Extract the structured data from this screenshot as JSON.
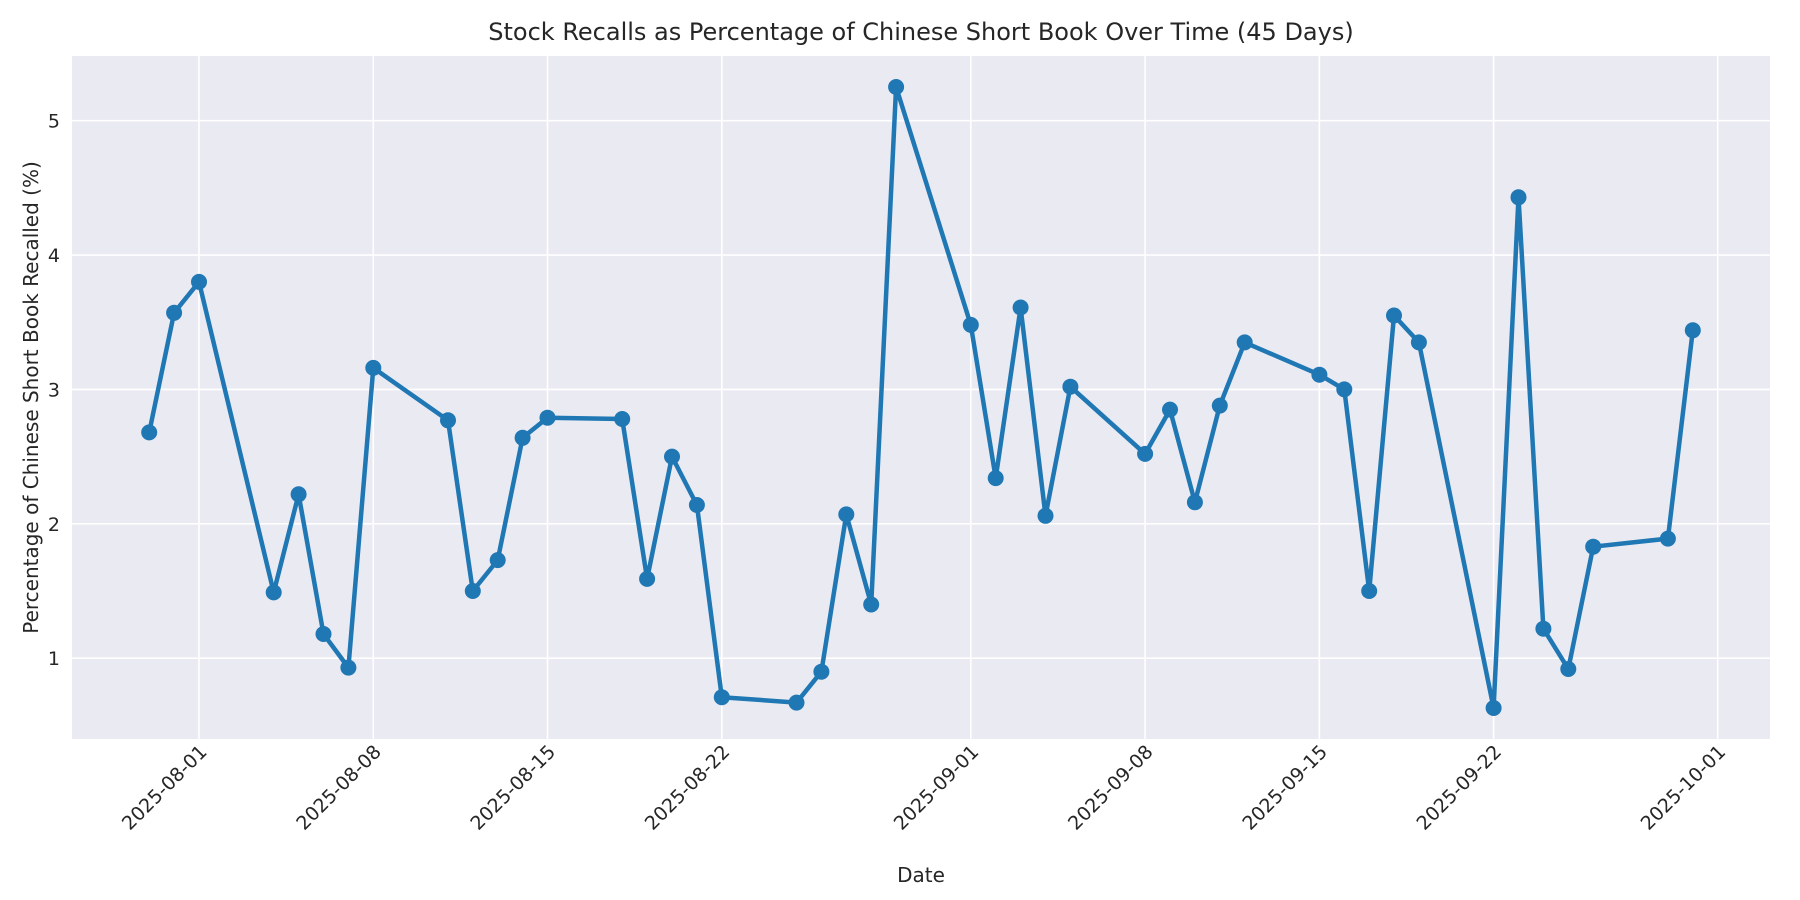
{
  "figure": {
    "title": "Stock Recalls as Percentage of Chinese Short Book Over Time (45 Days)",
    "xlabel": "Date",
    "ylabel": "Percentage of Chinese Short Book Recalled (%)"
  },
  "style": {
    "figure_background": "#ffffff",
    "plot_background": "#eaeaf2",
    "grid_color": "#ffffff",
    "line_color": "#1f77b4",
    "marker_color": "#1f77b4",
    "text_color": "#262626"
  },
  "chart_data": {
    "type": "line",
    "title": "Stock Recalls as Percentage of Chinese Short Book Over Time (45 Days)",
    "xlabel": "Date",
    "ylabel": "Percentage of Chinese Short Book Recalled (%)",
    "legend": false,
    "grid": true,
    "marker": "circle",
    "x": [
      "2025-07-30",
      "2025-07-31",
      "2025-08-01",
      "2025-08-04",
      "2025-08-05",
      "2025-08-06",
      "2025-08-07",
      "2025-08-08",
      "2025-08-11",
      "2025-08-12",
      "2025-08-13",
      "2025-08-14",
      "2025-08-15",
      "2025-08-18",
      "2025-08-19",
      "2025-08-20",
      "2025-08-21",
      "2025-08-22",
      "2025-08-25",
      "2025-08-26",
      "2025-08-27",
      "2025-08-28",
      "2025-08-29",
      "2025-09-01",
      "2025-09-02",
      "2025-09-03",
      "2025-09-04",
      "2025-09-05",
      "2025-09-08",
      "2025-09-09",
      "2025-09-10",
      "2025-09-11",
      "2025-09-12",
      "2025-09-15",
      "2025-09-16",
      "2025-09-17",
      "2025-09-18",
      "2025-09-19",
      "2025-09-22",
      "2025-09-23",
      "2025-09-24",
      "2025-09-25",
      "2025-09-26",
      "2025-09-29",
      "2025-09-30"
    ],
    "y": [
      2.68,
      3.57,
      3.8,
      1.49,
      2.22,
      1.18,
      0.93,
      3.16,
      2.77,
      1.5,
      1.73,
      2.64,
      2.79,
      2.78,
      1.59,
      2.5,
      2.14,
      0.71,
      0.67,
      0.9,
      2.07,
      1.4,
      5.25,
      3.48,
      2.34,
      3.61,
      2.06,
      3.02,
      2.52,
      2.85,
      2.16,
      2.88,
      3.35,
      3.11,
      3.0,
      1.5,
      3.55,
      3.35,
      0.63,
      4.43,
      1.22,
      0.92,
      1.83,
      1.89,
      3.44
    ],
    "xticks": [
      "2025-08-01",
      "2025-08-08",
      "2025-08-15",
      "2025-08-22",
      "2025-09-01",
      "2025-09-08",
      "2025-09-15",
      "2025-09-22",
      "2025-10-01"
    ],
    "yticks": [
      1,
      2,
      3,
      4,
      5
    ],
    "x_axis_margin": 0.05,
    "y_axis_margin": 0.05,
    "ylim": [
      0.399,
      5.481
    ],
    "legend_position": "none"
  }
}
